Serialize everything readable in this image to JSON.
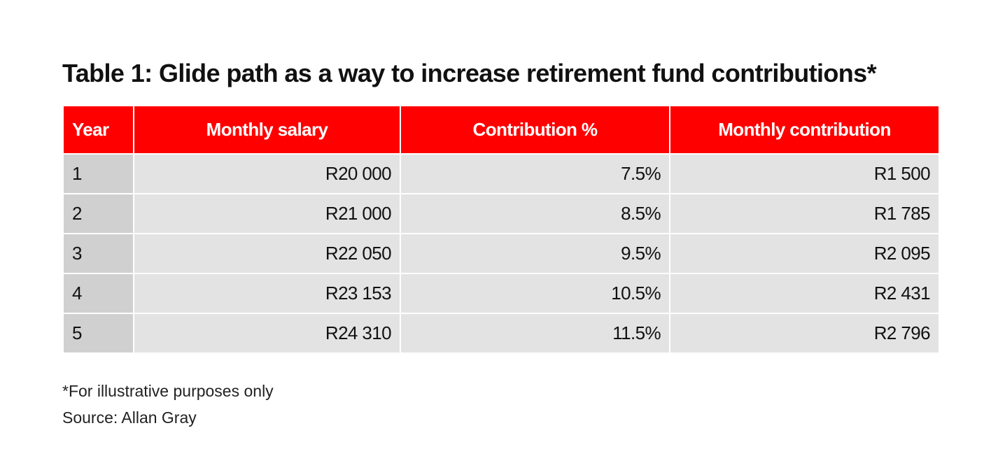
{
  "title": "Table 1: Glide path as a way to increase retirement fund contributions*",
  "table": {
    "headers": [
      "Year",
      "Monthly salary",
      "Contribution %",
      "Monthly contribution"
    ],
    "rows": [
      [
        "1",
        "R20 000",
        "7.5%",
        "R1 500"
      ],
      [
        "2",
        "R21 000",
        "8.5%",
        "R1 785"
      ],
      [
        "3",
        "R22 050",
        "9.5%",
        "R2 095"
      ],
      [
        "4",
        "R23 153",
        "10.5%",
        "R2 431"
      ],
      [
        "5",
        "R24 310",
        "11.5%",
        "R2 796"
      ]
    ]
  },
  "footnote": "*For illustrative purposes only",
  "source": "Source: Allan Gray",
  "colors": {
    "header": "#ff0000",
    "cell": "#e3e3e3",
    "year_cell": "#d0d0d0"
  }
}
